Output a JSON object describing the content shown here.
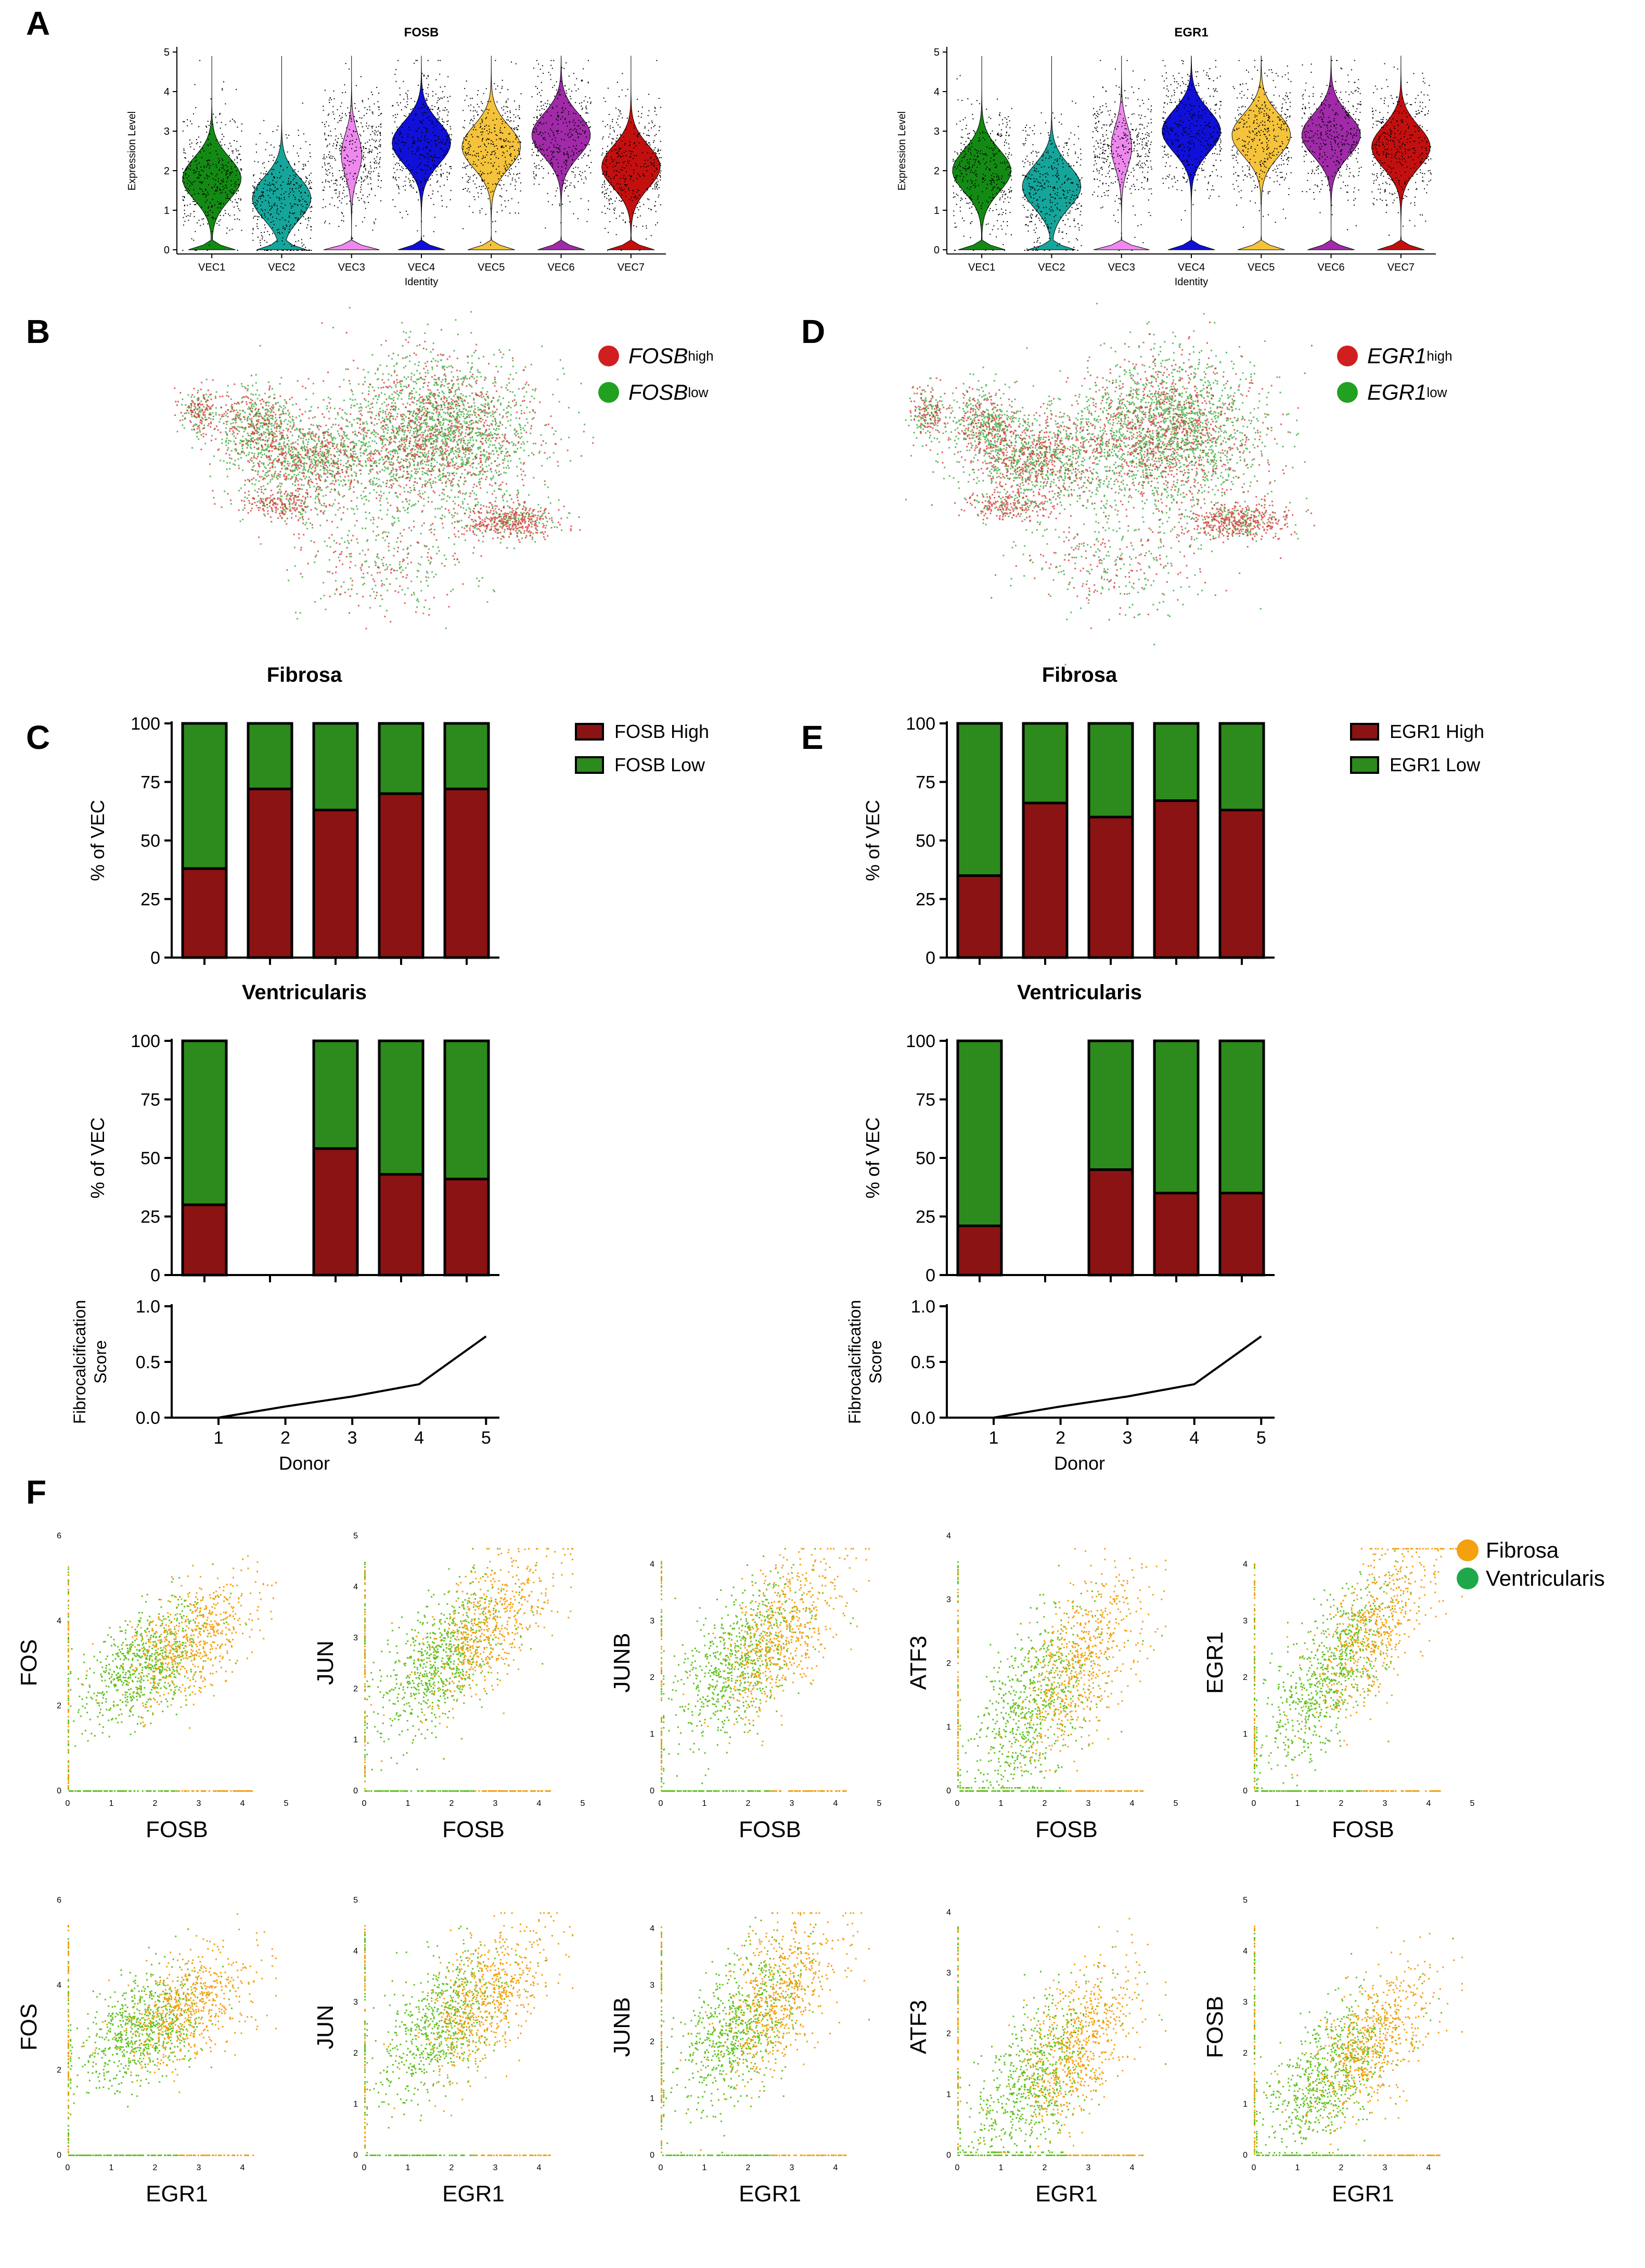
{
  "panels": {
    "A": "A",
    "B": "B",
    "C": "C",
    "D": "D",
    "E": "E",
    "F": "F"
  },
  "colors": {
    "fosb_high": "#8b1313",
    "fosb_low": "#2d8a1c",
    "umap_high": "#d11f1f",
    "umap_low": "#21a021",
    "fibrosa": "#f5a00f",
    "ventricularis": "#1fa84a",
    "violin": [
      "#138a13",
      "#15a59a",
      "#ee88ee",
      "#1010d8",
      "#f5c33b",
      "#a02aa8",
      "#c40f0f"
    ]
  },
  "legend_B": {
    "gene": "FOSB",
    "high_sup": "high",
    "low_sup": "low"
  },
  "legend_D": {
    "gene": "EGR1",
    "high_sup": "high",
    "low_sup": "low"
  },
  "legend_C": {
    "high": "FOSB High",
    "low": "FOSB Low"
  },
  "legend_E": {
    "high": "EGR1 High",
    "low": "EGR1 Low"
  },
  "legend_F": {
    "fibrosa": "Fibrosa",
    "ventricularis": "Ventricularis"
  },
  "chart_data": [
    {
      "id": "violin-fosb",
      "type": "violin",
      "title": "FOSB",
      "xlabel": "Identity",
      "ylabel": "Expression Level",
      "categories": [
        "VEC1",
        "VEC2",
        "VEC3",
        "VEC4",
        "VEC5",
        "VEC6",
        "VEC7"
      ],
      "medians": [
        1.8,
        1.3,
        2.4,
        2.7,
        2.6,
        2.9,
        2.1
      ],
      "ylim": [
        0,
        5
      ],
      "yticks": [
        "0",
        "1",
        "2",
        "3",
        "4",
        "5"
      ]
    },
    {
      "id": "violin-egr1",
      "type": "violin",
      "title": "EGR1",
      "xlabel": "Identity",
      "ylabel": "Expression Level",
      "categories": [
        "VEC1",
        "VEC2",
        "VEC3",
        "VEC4",
        "VEC5",
        "VEC6",
        "VEC7"
      ],
      "medians": [
        2.0,
        1.6,
        2.6,
        3.0,
        2.9,
        2.9,
        2.6
      ],
      "ylim": [
        0,
        5
      ],
      "yticks": [
        "0",
        "1",
        "2",
        "3",
        "4",
        "5"
      ]
    },
    {
      "id": "fosb-fibrosa",
      "type": "bar",
      "title": "Fibrosa",
      "ylabel": "% of VEC",
      "categories": [
        "1",
        "2",
        "3",
        "4",
        "5"
      ],
      "ylim": [
        0,
        100
      ],
      "yticks": [
        "0",
        "25",
        "50",
        "75",
        "100"
      ],
      "series": [
        {
          "name": "FOSB High",
          "values": [
            38,
            72,
            63,
            70,
            72
          ]
        },
        {
          "name": "FOSB Low",
          "values": [
            62,
            28,
            37,
            30,
            28
          ]
        }
      ]
    },
    {
      "id": "fosb-ventricularis",
      "type": "bar",
      "title": "Ventricularis",
      "ylabel": "% of VEC",
      "categories": [
        "1",
        "2",
        "3",
        "4",
        "5"
      ],
      "ylim": [
        0,
        100
      ],
      "yticks": [
        "0",
        "25",
        "50",
        "75",
        "100"
      ],
      "series": [
        {
          "name": "FOSB High",
          "values": [
            30,
            0,
            54,
            43,
            41
          ]
        },
        {
          "name": "FOSB Low",
          "values": [
            70,
            0,
            46,
            57,
            59
          ]
        }
      ]
    },
    {
      "id": "fosb-score",
      "type": "line",
      "xlabel": "Donor",
      "ylabel": "Fibrocalcification Score",
      "x": [
        1,
        2,
        3,
        4,
        5
      ],
      "y": [
        0.0,
        0.1,
        0.19,
        0.3,
        0.73
      ],
      "ylim": [
        0,
        1
      ],
      "yticks": [
        "0.0",
        "0.5",
        "1.0"
      ],
      "xticks": [
        "1",
        "2",
        "3",
        "4",
        "5"
      ]
    },
    {
      "id": "egr1-fibrosa",
      "type": "bar",
      "title": "Fibrosa",
      "ylabel": "% of VEC",
      "categories": [
        "1",
        "2",
        "3",
        "4",
        "5"
      ],
      "ylim": [
        0,
        100
      ],
      "yticks": [
        "0",
        "25",
        "50",
        "75",
        "100"
      ],
      "series": [
        {
          "name": "EGR1 High",
          "values": [
            35,
            66,
            60,
            67,
            63
          ]
        },
        {
          "name": "EGR1 Low",
          "values": [
            65,
            34,
            40,
            33,
            37
          ]
        }
      ]
    },
    {
      "id": "egr1-ventricularis",
      "type": "bar",
      "title": "Ventricularis",
      "ylabel": "% of VEC",
      "categories": [
        "1",
        "2",
        "3",
        "4",
        "5"
      ],
      "ylim": [
        0,
        100
      ],
      "yticks": [
        "0",
        "25",
        "50",
        "75",
        "100"
      ],
      "series": [
        {
          "name": "EGR1 High",
          "values": [
            21,
            0,
            45,
            35,
            35
          ]
        },
        {
          "name": "EGR1 Low",
          "values": [
            79,
            0,
            55,
            65,
            65
          ]
        }
      ]
    },
    {
      "id": "egr1-score",
      "type": "line",
      "xlabel": "Donor",
      "ylabel": "Fibrocalcification Score",
      "x": [
        1,
        2,
        3,
        4,
        5
      ],
      "y": [
        0.0,
        0.1,
        0.19,
        0.3,
        0.73
      ],
      "ylim": [
        0,
        1
      ],
      "yticks": [
        "0.0",
        "0.5",
        "1.0"
      ],
      "xticks": [
        "1",
        "2",
        "3",
        "4",
        "5"
      ]
    },
    {
      "id": "sc-1-1",
      "type": "scatter",
      "xlabel": "FOSB",
      "ylabel": "FOS",
      "xlim": [
        0,
        5
      ],
      "ylim": [
        0,
        6
      ],
      "xticks": [
        "0",
        "1",
        "2",
        "3",
        "4",
        "5"
      ],
      "yticks": [
        "0",
        "2",
        "4",
        "6"
      ],
      "slope": 0.55,
      "intercept": 2.0
    },
    {
      "id": "sc-1-2",
      "type": "scatter",
      "xlabel": "FOSB",
      "ylabel": "JUN",
      "xlim": [
        0,
        5
      ],
      "ylim": [
        0,
        5
      ],
      "xticks": [
        "0",
        "1",
        "2",
        "3",
        "4",
        "5"
      ],
      "yticks": [
        "0",
        "1",
        "2",
        "3",
        "4",
        "5"
      ],
      "slope": 0.6,
      "intercept": 1.5
    },
    {
      "id": "sc-1-3",
      "type": "scatter",
      "xlabel": "FOSB",
      "ylabel": "JUNB",
      "xlim": [
        0,
        5
      ],
      "ylim": [
        0,
        4.5
      ],
      "xticks": [
        "0",
        "1",
        "2",
        "3",
        "4",
        "5"
      ],
      "yticks": [
        "0",
        "1",
        "2",
        "3",
        "4"
      ],
      "slope": 0.55,
      "intercept": 1.3
    },
    {
      "id": "sc-1-4",
      "type": "scatter",
      "xlabel": "FOSB",
      "ylabel": "ATF3",
      "xlim": [
        0,
        5
      ],
      "ylim": [
        0,
        4
      ],
      "xticks": [
        "0",
        "1",
        "2",
        "3",
        "4",
        "5"
      ],
      "yticks": [
        "0",
        "1",
        "2",
        "3",
        "4"
      ],
      "slope": 0.6,
      "intercept": 0.3
    },
    {
      "id": "sc-1-5",
      "type": "scatter",
      "xlabel": "FOSB",
      "ylabel": "EGR1",
      "xlim": [
        0,
        5
      ],
      "ylim": [
        0,
        4.5
      ],
      "xticks": [
        "0",
        "1",
        "2",
        "3",
        "4",
        "5"
      ],
      "yticks": [
        "0",
        "1",
        "2",
        "3",
        "4"
      ],
      "slope": 0.8,
      "intercept": 0.7
    },
    {
      "id": "sc-2-1",
      "type": "scatter",
      "xlabel": "EGR1",
      "ylabel": "FOS",
      "xlim": [
        0,
        5
      ],
      "ylim": [
        0,
        6
      ],
      "xticks": [
        "0",
        "1",
        "2",
        "3",
        "4"
      ],
      "yticks": [
        "0",
        "2",
        "4",
        "6"
      ],
      "slope": 0.45,
      "intercept": 2.2
    },
    {
      "id": "sc-2-2",
      "type": "scatter",
      "xlabel": "EGR1",
      "ylabel": "JUN",
      "xlim": [
        0,
        5
      ],
      "ylim": [
        0,
        5
      ],
      "xticks": [
        "0",
        "1",
        "2",
        "3",
        "4"
      ],
      "yticks": [
        "0",
        "1",
        "2",
        "3",
        "4",
        "5"
      ],
      "slope": 0.55,
      "intercept": 1.6
    },
    {
      "id": "sc-2-3",
      "type": "scatter",
      "xlabel": "EGR1",
      "ylabel": "JUNB",
      "xlim": [
        0,
        5
      ],
      "ylim": [
        0,
        4.5
      ],
      "xticks": [
        "0",
        "1",
        "2",
        "3",
        "4"
      ],
      "yticks": [
        "0",
        "1",
        "2",
        "3",
        "4"
      ],
      "slope": 0.55,
      "intercept": 1.3
    },
    {
      "id": "sc-2-4",
      "type": "scatter",
      "xlabel": "EGR1",
      "ylabel": "ATF3",
      "xlim": [
        0,
        5
      ],
      "ylim": [
        0,
        4.2
      ],
      "xticks": [
        "0",
        "1",
        "2",
        "3",
        "4"
      ],
      "yticks": [
        "0",
        "1",
        "2",
        "3",
        "4"
      ],
      "slope": 0.55,
      "intercept": 0.3
    },
    {
      "id": "sc-2-5",
      "type": "scatter",
      "xlabel": "EGR1",
      "ylabel": "FOSB",
      "xlim": [
        0,
        5
      ],
      "ylim": [
        0,
        5
      ],
      "xticks": [
        "0",
        "1",
        "2",
        "3",
        "4"
      ],
      "yticks": [
        "0",
        "1",
        "2",
        "3",
        "4",
        "5"
      ],
      "slope": 0.6,
      "intercept": 0.6
    }
  ]
}
